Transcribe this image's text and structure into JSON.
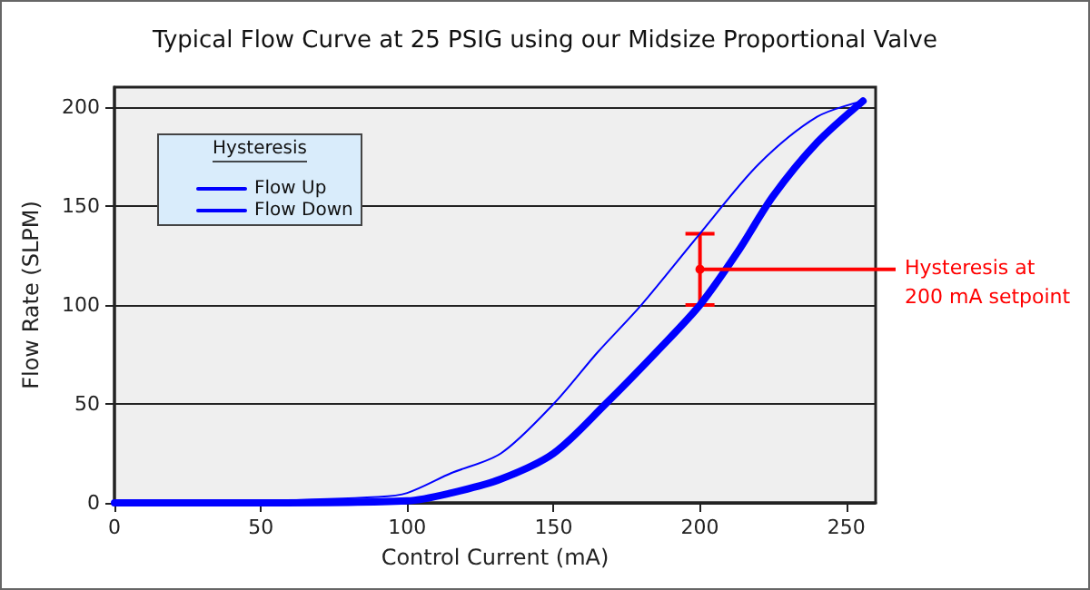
{
  "chart_data": {
    "type": "line",
    "title": "Typical Flow Curve at 25 PSIG using our Midsize Proportional Valve",
    "xlabel": "Control Current (mA)",
    "ylabel": "Flow Rate (SLPM)",
    "legend_title": "Hysteresis",
    "legend": "top left",
    "grid": "y",
    "marker": "none",
    "xlim": [
      0,
      260
    ],
    "xticks": [
      0,
      50,
      100,
      150,
      200,
      250
    ],
    "ylim": [
      0,
      210
    ],
    "yticks": [
      0,
      50,
      100,
      150,
      200
    ],
    "series": [
      {
        "name": "Flow Up",
        "color": "#0000ff",
        "x": [
          0,
          50,
          100,
          115,
          132,
          150,
          167.8,
          185,
          200,
          213,
          225,
          240,
          255.7
        ],
        "values": [
          0,
          0,
          1,
          5,
          12,
          25,
          50,
          76,
          100,
          127,
          155,
          182,
          203
        ]
      },
      {
        "name": "Flow Down",
        "color": "#0000ff",
        "x": [
          0,
          50,
          90,
          100,
          115,
          132,
          150,
          165,
          180,
          200,
          220,
          240,
          255.7
        ],
        "values": [
          0,
          1,
          3,
          5,
          15,
          25,
          50,
          76,
          100,
          136,
          171,
          195,
          203
        ]
      },
      {
        "type": "scatter",
        "marker": "circle",
        "color": "#ff0000",
        "x": [
          200
        ],
        "values": [
          118
        ],
        "errors": [
          [
            100,
            136
          ]
        ]
      }
    ],
    "annotations": [
      {
        "text": "Hysteresis at\n200 mA setpoint",
        "x": 200,
        "y": 118
      }
    ]
  }
}
